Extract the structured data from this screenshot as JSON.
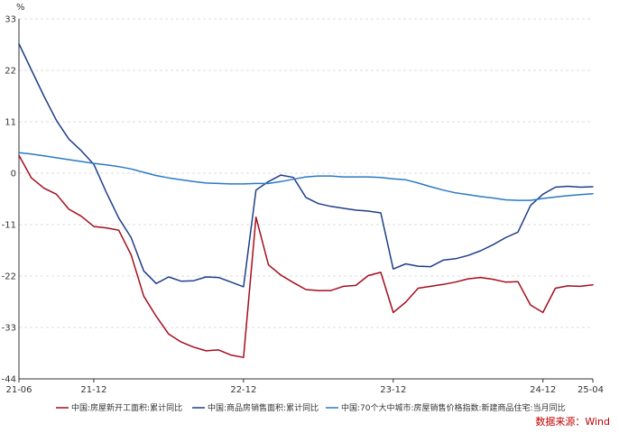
{
  "chart_data": {
    "type": "line",
    "ylabel": "%",
    "ylim": [
      -44,
      33
    ],
    "yticks": [
      33,
      22,
      11,
      0,
      -11,
      -22,
      -33,
      -44
    ],
    "xlim": [
      "2021-06",
      "2025-04"
    ],
    "xticks": [
      "21-06",
      "21-12",
      "22-12",
      "23-12",
      "24-12",
      "25-04"
    ],
    "grid": true,
    "legend_position": "bottom",
    "x": [
      "2021-06",
      "2021-07",
      "2021-08",
      "2021-09",
      "2021-10",
      "2021-11",
      "2021-12",
      "2022-01",
      "2022-02",
      "2022-03",
      "2022-04",
      "2022-05",
      "2022-06",
      "2022-07",
      "2022-08",
      "2022-09",
      "2022-10",
      "2022-11",
      "2022-12",
      "2023-01",
      "2023-02",
      "2023-03",
      "2023-04",
      "2023-05",
      "2023-06",
      "2023-07",
      "2023-08",
      "2023-09",
      "2023-10",
      "2023-11",
      "2023-12",
      "2024-01",
      "2024-02",
      "2024-03",
      "2024-04",
      "2024-05",
      "2024-06",
      "2024-07",
      "2024-08",
      "2024-09",
      "2024-10",
      "2024-11",
      "2024-12",
      "2025-01",
      "2025-02",
      "2025-03",
      "2025-04"
    ],
    "series": [
      {
        "name": "中国:房屋新开工面积:累计同比",
        "color": "#a50d1e",
        "values": [
          3.8,
          -1.0,
          -3.2,
          -4.5,
          -7.7,
          -9.2,
          -11.4,
          -11.7,
          -12.2,
          -17.5,
          -26.3,
          -30.6,
          -34.4,
          -36.1,
          -37.2,
          -38.0,
          -37.8,
          -38.9,
          -39.4,
          -9.4,
          -19.6,
          -21.8,
          -23.4,
          -24.9,
          -25.1,
          -25.1,
          -24.2,
          -24.0,
          -21.9,
          -21.2,
          -29.8,
          -27.6,
          -24.6,
          -24.2,
          -23.8,
          -23.3,
          -22.6,
          -22.3,
          -22.7,
          -23.3,
          -23.2,
          -28.2,
          -29.8,
          -24.6,
          -24.1,
          -24.2,
          -23.9
        ],
        "plot_values": [
          3.8,
          -1.0,
          -3.2,
          -4.5,
          -7.7,
          -9.2,
          -11.4,
          -11.7,
          -12.2,
          -17.5,
          -26.3,
          -30.6,
          -34.4,
          -36.1,
          -37.2,
          -38.0,
          -37.8,
          -38.9,
          -39.4,
          -9.4,
          -19.6,
          -21.8,
          -23.4,
          -24.9,
          -25.1,
          -25.1,
          -24.2,
          -24.0,
          -21.9,
          -21.2,
          -29.8,
          -27.6,
          -24.6,
          -24.2,
          -23.8,
          -23.3,
          -22.6,
          -22.3,
          -22.7,
          -23.3,
          -23.2,
          -28.2,
          -29.8,
          -24.6,
          -24.1,
          -24.2,
          -23.9
        ]
      },
      {
        "name": "中国:商品房销售面积:累计同比",
        "color": "#1f3f8a",
        "values": [
          27.7,
          22.1,
          16.5,
          11.3,
          7.3,
          4.8,
          1.9,
          -4.1,
          -9.6,
          -13.8,
          -20.9,
          -23.6,
          -22.2,
          -23.1,
          -23.0,
          -22.2,
          -22.3,
          -23.3,
          -24.3,
          -3.6,
          -1.8,
          -0.4,
          -0.9,
          -5.2,
          -6.5,
          -7.1,
          -7.5,
          -7.9,
          -8.1,
          -8.5,
          -20.5,
          -19.4,
          -19.9,
          -20.0,
          -18.6,
          -18.3,
          -17.6,
          -16.6,
          -15.3,
          -13.8,
          -12.6,
          -6.9,
          -4.5,
          -3.0,
          -2.8,
          -3.0,
          -2.9
        ],
        "plot_values": [
          27.7,
          22.1,
          16.5,
          11.3,
          7.3,
          4.8,
          1.9,
          -4.1,
          -9.6,
          -13.8,
          -20.9,
          -23.6,
          -22.2,
          -23.1,
          -23.0,
          -22.2,
          -22.3,
          -23.3,
          -24.3,
          -3.6,
          -1.8,
          -0.4,
          -0.9,
          -5.2,
          -6.5,
          -7.1,
          -7.5,
          -7.9,
          -8.1,
          -8.5,
          -20.5,
          -19.4,
          -19.9,
          -20.0,
          -18.6,
          -18.3,
          -17.6,
          -16.6,
          -15.3,
          -13.8,
          -12.6,
          -6.9,
          -4.5,
          -3.0,
          -2.8,
          -3.0,
          -2.9
        ]
      },
      {
        "name": "中国:70个大中城市:房屋销售价格指数:新建商品住宅:当月同比",
        "color": "#2a7ac4",
        "values": [
          4.4,
          4.1,
          3.7,
          3.3,
          2.9,
          2.5,
          2.1,
          1.8,
          1.4,
          0.9,
          0.2,
          -0.5,
          -1.0,
          -1.4,
          -1.8,
          -2.1,
          -2.2,
          -2.3,
          -2.3,
          -2.2,
          -2.2,
          -1.8,
          -1.3,
          -0.8,
          -0.6,
          -0.6,
          -0.8,
          -0.8,
          -0.8,
          -0.9,
          -1.2,
          -1.4,
          -2.1,
          -2.9,
          -3.6,
          -4.2,
          -4.6,
          -5.0,
          -5.3,
          -5.7,
          -5.8,
          -5.8,
          -5.4,
          -5.1,
          -4.8,
          -4.6,
          -4.4
        ],
        "plot_values": [
          4.4,
          4.1,
          3.7,
          3.3,
          2.9,
          2.5,
          2.1,
          1.8,
          1.4,
          0.9,
          0.2,
          -0.5,
          -1.0,
          -1.4,
          -1.8,
          -2.1,
          -2.2,
          -2.3,
          -2.3,
          -2.2,
          -2.2,
          -1.8,
          -1.3,
          -0.8,
          -0.6,
          -0.6,
          -0.8,
          -0.8,
          -0.8,
          -0.9,
          -1.2,
          -1.4,
          -2.1,
          -2.9,
          -3.6,
          -4.2,
          -4.6,
          -5.0,
          -5.3,
          -5.7,
          -5.8,
          -5.8,
          -5.4,
          -5.1,
          -4.8,
          -4.6,
          -4.4
        ]
      }
    ]
  },
  "source_label": "数据来源：Wind"
}
